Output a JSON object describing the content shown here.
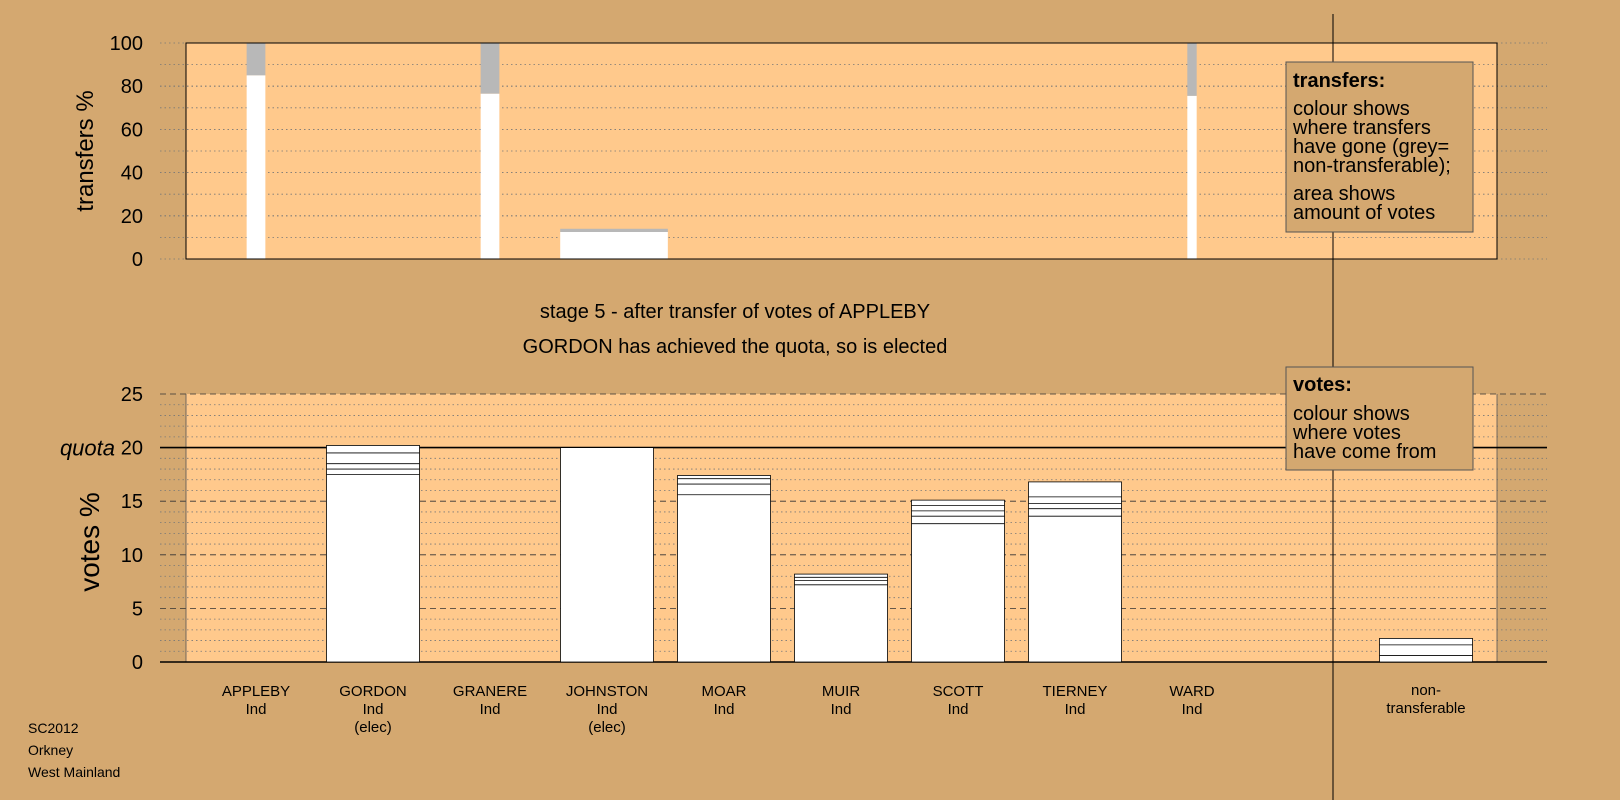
{
  "footer": {
    "lines": [
      "SC2012",
      "Orkney",
      "West Mainland"
    ]
  },
  "colors": {
    "background": "#d4a870",
    "plot": "#ffc98c",
    "bar": "#ffffff",
    "nontransferable": "#b8b8b8",
    "legend": "#d4a870"
  },
  "stage": {
    "title": "stage 5 - after transfer of votes of APPLEBY",
    "subtitle": "GORDON has achieved the quota, so is elected"
  },
  "transfers_legend": {
    "heading": "transfers:",
    "lines1": [
      "colour shows",
      "where transfers",
      "have gone (grey=",
      "non-transferable);"
    ],
    "lines2": [
      "area shows",
      "amount of votes"
    ]
  },
  "votes_legend": {
    "heading": "votes:",
    "lines": [
      "colour shows",
      "where votes",
      "have come from"
    ]
  },
  "chart_data": [
    {
      "type": "bar",
      "name_key": "transfers",
      "ylabel": "transfers %",
      "ylim": [
        0,
        100
      ],
      "yticks": [
        0,
        20,
        40,
        60,
        80,
        100
      ],
      "categories": [
        "APPLEBY",
        "GORDON",
        "GRANERE",
        "JOHNSTON",
        "MOAR",
        "MUIR",
        "SCOTT",
        "TIERNEY",
        "WARD"
      ],
      "bars": [
        {
          "category": "APPLEBY",
          "width_share": 0.2,
          "transferable": 85,
          "nontransferable": 15
        },
        {
          "category": "GRANERE",
          "width_share": 0.2,
          "transferable": 76.5,
          "nontransferable": 23.5
        },
        {
          "category": "JOHNSTON",
          "width_share": 1.15,
          "transferable": 12.5,
          "nontransferable": 1.5
        },
        {
          "category": "WARD",
          "width_share": 0.1,
          "transferable": 75.5,
          "nontransferable": 24.5
        }
      ],
      "grid": true
    },
    {
      "type": "bar",
      "name_key": "votes",
      "ylabel": "votes %",
      "ylim": [
        0,
        25
      ],
      "yticks": [
        0,
        5,
        10,
        15,
        20,
        25
      ],
      "quota": 20,
      "quota_label": "quota",
      "grid": true,
      "candidates": [
        {
          "name": "APPLEBY",
          "party": "Ind",
          "status": "",
          "value": 0,
          "segments": []
        },
        {
          "name": "GORDON",
          "party": "Ind",
          "status": "(elec)",
          "value": 20.2,
          "segments": [
            17.5,
            18.0,
            18.5,
            19.5
          ]
        },
        {
          "name": "GRANERE",
          "party": "Ind",
          "status": "",
          "value": 0,
          "segments": []
        },
        {
          "name": "JOHNSTON",
          "party": "Ind",
          "status": "(elec)",
          "value": 20.0,
          "segments": []
        },
        {
          "name": "MOAR",
          "party": "Ind",
          "status": "",
          "value": 17.4,
          "segments": [
            15.6,
            16.6,
            17.1
          ]
        },
        {
          "name": "MUIR",
          "party": "Ind",
          "status": "",
          "value": 8.2,
          "segments": [
            7.2,
            7.6,
            7.9
          ]
        },
        {
          "name": "SCOTT",
          "party": "Ind",
          "status": "",
          "value": 15.1,
          "segments": [
            12.9,
            13.6,
            14.1,
            14.6
          ]
        },
        {
          "name": "TIERNEY",
          "party": "Ind",
          "status": "",
          "value": 16.8,
          "segments": [
            13.6,
            14.3,
            14.8,
            15.4
          ]
        },
        {
          "name": "WARD",
          "party": "Ind",
          "status": "",
          "value": 0,
          "segments": []
        }
      ],
      "nontransferable": {
        "label_lines": [
          "non-",
          "transferable"
        ],
        "value": 2.2,
        "segments": [
          0.6,
          1.6
        ]
      }
    }
  ]
}
